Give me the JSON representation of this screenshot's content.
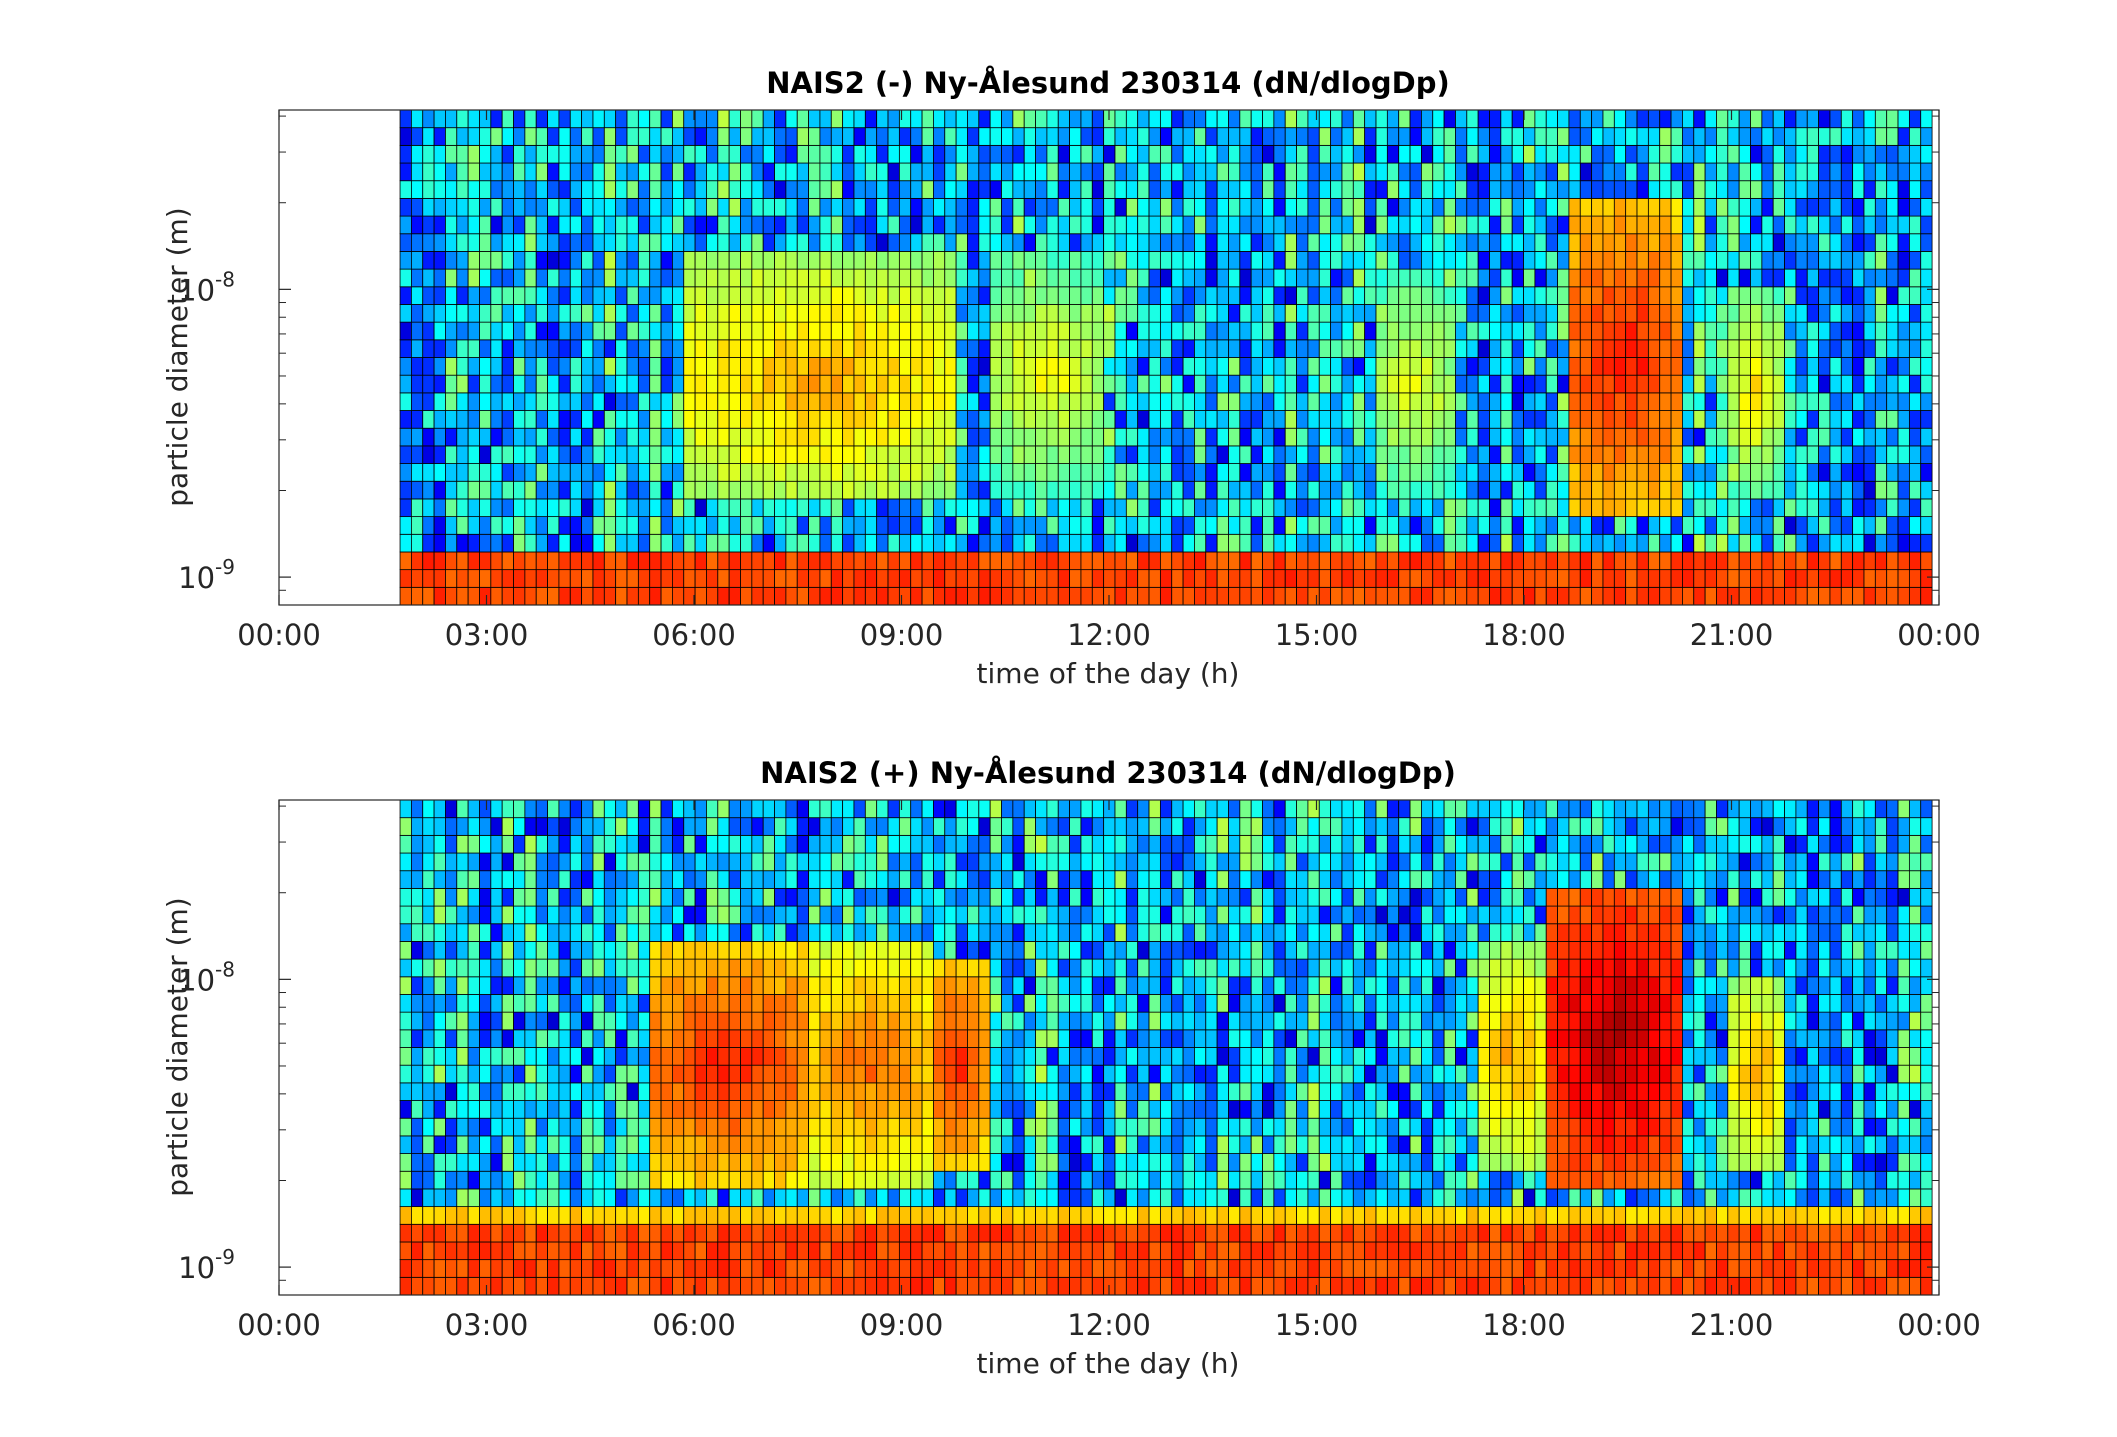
{
  "chart_data": [
    {
      "type": "heatmap",
      "title": "NAIS2 (-) Ny-Ålesund 230314 (dN/dlogDp)",
      "xlabel": "time of the day (h)",
      "ylabel": "particle diameter (m)",
      "xlim": [
        0,
        24
      ],
      "ylim": [
        8e-10,
        4.2e-08
      ],
      "y_scale": "log",
      "x_ticks": [
        "00:00",
        "03:00",
        "06:00",
        "09:00",
        "12:00",
        "15:00",
        "18:00",
        "21:00",
        "00:00"
      ],
      "y_ticks": [
        {
          "base": "10",
          "exp": "-9"
        },
        {
          "base": "10",
          "exp": "-8"
        }
      ],
      "data_start_hour": 1.75,
      "data_end_hour": 23.9,
      "colormap": "jet",
      "edge_color": "#000000",
      "time_bins": 135,
      "size_bins": 28,
      "lowest_size_band": [
        8e-10,
        1.3e-09
      ],
      "background_pattern": "mostly cyan-blue noise in the upper size range, persistent yellow-red band at the smallest sizes",
      "hotspots": [
        {
          "x_hours": [
            5.8,
            9.8
          ],
          "y_m": [
            1.8e-09,
            1.3e-08
          ],
          "level": 0.72
        },
        {
          "x_hours": [
            10.2,
            12.0
          ],
          "y_m": [
            2e-09,
            1.3e-08
          ],
          "level": 0.63
        },
        {
          "x_hours": [
            15.8,
            17.0
          ],
          "y_m": [
            2e-09,
            1.1e-08
          ],
          "level": 0.62
        },
        {
          "x_hours": [
            18.6,
            20.3
          ],
          "y_m": [
            1.7e-09,
            2e-08
          ],
          "level": 0.87
        },
        {
          "x_hours": [
            21.0,
            21.7
          ],
          "y_m": [
            2e-09,
            1e-08
          ],
          "level": 0.66
        }
      ]
    },
    {
      "type": "heatmap",
      "title": "NAIS2 (+) Ny-Ålesund 230314 (dN/dlogDp)",
      "xlabel": "time of the day (h)",
      "ylabel": "particle diameter (m)",
      "xlim": [
        0,
        24
      ],
      "ylim": [
        8e-10,
        4.2e-08
      ],
      "y_scale": "log",
      "x_ticks": [
        "00:00",
        "03:00",
        "06:00",
        "09:00",
        "12:00",
        "15:00",
        "18:00",
        "21:00",
        "00:00"
      ],
      "y_ticks": [
        {
          "base": "10",
          "exp": "-9"
        },
        {
          "base": "10",
          "exp": "-8"
        }
      ],
      "data_start_hour": 1.75,
      "data_end_hour": 23.9,
      "colormap": "jet",
      "edge_color": "#000000",
      "time_bins": 135,
      "size_bins": 28,
      "lowest_size_band": [
        8e-10,
        1.6e-09
      ],
      "background_pattern": "cyan-blue noise at larger sizes, broad yellow-red band at the smallest sizes",
      "hotspots": [
        {
          "x_hours": [
            5.4,
            7.6
          ],
          "y_m": [
            2e-09,
            1.3e-08
          ],
          "level": 0.86
        },
        {
          "x_hours": [
            7.6,
            9.5
          ],
          "y_m": [
            2e-09,
            1.3e-08
          ],
          "level": 0.78
        },
        {
          "x_hours": [
            9.4,
            10.2
          ],
          "y_m": [
            2.2e-09,
            1.2e-08
          ],
          "level": 0.85
        },
        {
          "x_hours": [
            17.3,
            18.4
          ],
          "y_m": [
            2.2e-09,
            1.3e-08
          ],
          "level": 0.72
        },
        {
          "x_hours": [
            18.4,
            20.3
          ],
          "y_m": [
            1.8e-09,
            2.2e-08
          ],
          "level": 0.96
        },
        {
          "x_hours": [
            21.0,
            21.8
          ],
          "y_m": [
            2.2e-09,
            1e-08
          ],
          "level": 0.72
        }
      ]
    }
  ]
}
